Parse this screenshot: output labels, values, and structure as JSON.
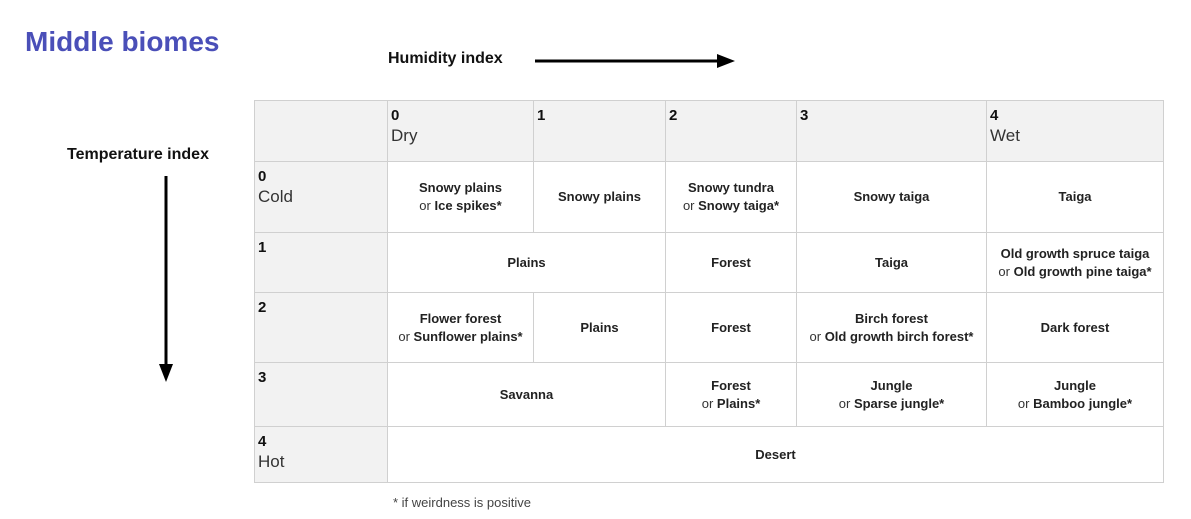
{
  "title": "Middle biomes",
  "humidity_label": "Humidity index",
  "temperature_label": "Temperature index",
  "humidity_columns": [
    {
      "index": "0",
      "word": "Dry"
    },
    {
      "index": "1",
      "word": ""
    },
    {
      "index": "2",
      "word": ""
    },
    {
      "index": "3",
      "word": ""
    },
    {
      "index": "4",
      "word": "Wet"
    }
  ],
  "temperature_rows": [
    {
      "index": "0",
      "word": "Cold"
    },
    {
      "index": "1",
      "word": ""
    },
    {
      "index": "2",
      "word": ""
    },
    {
      "index": "3",
      "word": ""
    },
    {
      "index": "4",
      "word": "Hot"
    }
  ],
  "or_word": "or",
  "cells": {
    "r0c0": {
      "main": "Snowy plains",
      "alt": "Ice spikes*"
    },
    "r0c1": {
      "main": "Snowy plains"
    },
    "r0c2": {
      "main": "Snowy tundra",
      "alt": "Snowy taiga*"
    },
    "r0c3": {
      "main": "Snowy taiga"
    },
    "r0c4": {
      "main": "Taiga"
    },
    "r1c01": {
      "main": "Plains"
    },
    "r1c2": {
      "main": "Forest"
    },
    "r1c3": {
      "main": "Taiga"
    },
    "r1c4": {
      "main": "Old growth spruce taiga",
      "alt": "Old growth pine taiga*"
    },
    "r2c0": {
      "main": "Flower forest",
      "alt": "Sunflower plains*"
    },
    "r2c1": {
      "main": "Plains"
    },
    "r2c2": {
      "main": "Forest"
    },
    "r2c3": {
      "main": "Birch forest",
      "alt": "Old growth birch forest*"
    },
    "r2c4": {
      "main": "Dark forest"
    },
    "r3c01": {
      "main": "Savanna"
    },
    "r3c2": {
      "main": "Forest",
      "alt": "Plains*"
    },
    "r3c3": {
      "main": "Jungle",
      "alt": "Sparse jungle*"
    },
    "r3c4": {
      "main": "Jungle",
      "alt": "Bamboo jungle*"
    },
    "r4all": {
      "main": "Desert"
    }
  },
  "footnote": "* if weirdness is positive",
  "colors": {
    "title": "#4a4fb8",
    "header_bg": "#f2f2f2",
    "border": "#d0d0d0"
  }
}
